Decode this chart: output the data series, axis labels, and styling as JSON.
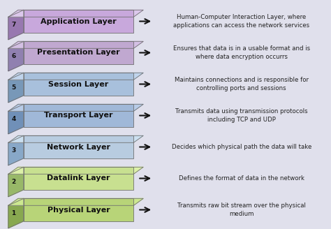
{
  "layers": [
    {
      "num": 7,
      "name": "Application Layer",
      "color_face": "#C8A8DC",
      "color_side": "#9878B0",
      "color_top": "#DCC8EC",
      "description": "Human-Computer Interaction Layer, where\napplications can access the network services"
    },
    {
      "num": 6,
      "name": "Presentation Layer",
      "color_face": "#C0A8D0",
      "color_side": "#9080B0",
      "color_top": "#D4C0E4",
      "description": "Ensures that data is in a usable format and is\nwhere data encryption occurrs"
    },
    {
      "num": 5,
      "name": "Session Layer",
      "color_face": "#A8C0DC",
      "color_side": "#7898B8",
      "color_top": "#C0D4EC",
      "description": "Maintains connections and is responsible for\ncontrolling ports and sessions"
    },
    {
      "num": 4,
      "name": "Transport Layer",
      "color_face": "#A0B8D8",
      "color_side": "#7090B8",
      "color_top": "#B8CCE8",
      "description": "Transmits data using transmission protocols\nincluding TCP and UDP"
    },
    {
      "num": 3,
      "name": "Network Layer",
      "color_face": "#B8CCE0",
      "color_side": "#88A8C8",
      "color_top": "#CCE0F0",
      "description": "Decides which physical path the data will take"
    },
    {
      "num": 2,
      "name": "Datalink Layer",
      "color_face": "#C8E090",
      "color_side": "#98B868",
      "color_top": "#DCF0A8",
      "description": "Defines the format of data in the network"
    },
    {
      "num": 1,
      "name": "Physical Layer",
      "color_face": "#B8D478",
      "color_side": "#88A850",
      "color_top": "#CCE890",
      "description": "Transmits raw bit stream over the physical\nmedium"
    }
  ],
  "bg_color": "#E0E0EC",
  "box_edge_color": "#707070",
  "text_color": "#111111",
  "arrow_color": "#111111",
  "desc_color": "#222222"
}
